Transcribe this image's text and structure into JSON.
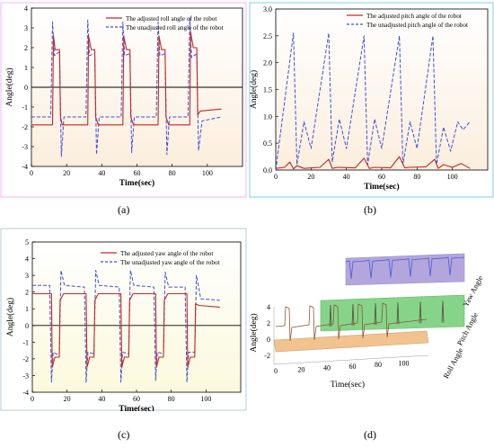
{
  "panel_labels": [
    "(a)",
    "(b)",
    "(c)",
    "(d)"
  ],
  "colors": {
    "adjusted": "#c0282a",
    "unadjusted": "#3f4fd8",
    "bg_a": "#fbeedd",
    "bg_b": "#fbeedd",
    "bg_c": "#fbf9dc",
    "roll_plane": "#f2c38f",
    "pitch_plane": "#85d48a",
    "yaw_plane": "#b3a6dd",
    "frame_a": "#f2b3ff",
    "frame_b": "#7ad1e6",
    "frame_c": "#b8c9d9"
  },
  "chart_data": [
    {
      "id": "a",
      "type": "line",
      "xlabel": "Time(sec)",
      "ylabel": "Angle(deg)",
      "xlim": [
        0,
        120
      ],
      "ylim": [
        -4,
        4
      ],
      "xticks": [
        0,
        20,
        40,
        60,
        80,
        100
      ],
      "yticks": [
        -4,
        -3,
        -2,
        -1,
        0,
        1,
        2,
        3,
        4
      ],
      "legend_position": "top-right",
      "series": [
        {
          "name": "The adjusted roll angle of the robot",
          "x": [
            0,
            12,
            12.5,
            13.5,
            16,
            16.5,
            17.5,
            32,
            32.5,
            34,
            36,
            36.5,
            38,
            52,
            52.5,
            54,
            56,
            56.5,
            58,
            72,
            72.5,
            74,
            76,
            76.5,
            78,
            90,
            90.5,
            92,
            94,
            94.5,
            96,
            108
          ],
          "y": [
            -1.9,
            -1.9,
            2.6,
            1.9,
            1.9,
            -1.5,
            -1.9,
            -1.9,
            2.6,
            1.9,
            1.9,
            -1.5,
            -1.9,
            -1.9,
            2.6,
            1.9,
            1.9,
            -1.5,
            -1.9,
            -1.9,
            2.6,
            1.9,
            1.9,
            -1.5,
            -1.9,
            -1.9,
            2.8,
            2.0,
            2.0,
            -1.4,
            -1.2,
            -1.1
          ]
        },
        {
          "name": "The unadjusted roll angle of the robot",
          "x": [
            0,
            11,
            12,
            13,
            16,
            17,
            18.5,
            31,
            32,
            33,
            36,
            37,
            38.5,
            51,
            52,
            53,
            56,
            57,
            58.5,
            71,
            72,
            73,
            76,
            77,
            78.5,
            89,
            90,
            91,
            94,
            95,
            97,
            108
          ],
          "y": [
            -1.5,
            -1.5,
            3.3,
            1.6,
            1.8,
            -3.5,
            -1.5,
            -1.5,
            3.4,
            1.6,
            1.7,
            -3.4,
            -1.5,
            -1.5,
            3.3,
            1.6,
            1.7,
            -3.3,
            -1.5,
            -1.5,
            3.3,
            1.6,
            1.7,
            -3.4,
            -1.5,
            -1.5,
            3.5,
            1.5,
            1.7,
            -3.2,
            -1.7,
            -1.5
          ]
        }
      ]
    },
    {
      "id": "b",
      "type": "line",
      "xlabel": "Time(sec)",
      "ylabel": "Angle(deg)",
      "xlim": [
        0,
        120
      ],
      "ylim": [
        0,
        3.0
      ],
      "xticks": [
        0,
        20,
        40,
        60,
        80,
        100
      ],
      "yticks": [
        0.0,
        0.5,
        1.0,
        1.5,
        2.0,
        2.5,
        3.0
      ],
      "legend_position": "top-right",
      "series": [
        {
          "name": "The adjusted pitch angle of the robot",
          "x": [
            0,
            5,
            8,
            10,
            12,
            16,
            25,
            30,
            32,
            35,
            45,
            50,
            53,
            56,
            65,
            70,
            73,
            76,
            85,
            90,
            92,
            95,
            100,
            105,
            110
          ],
          "y": [
            0.03,
            0.05,
            0.15,
            0.02,
            0.08,
            0.03,
            0.05,
            0.2,
            0.03,
            0.05,
            0.04,
            0.22,
            0.03,
            0.05,
            0.04,
            0.25,
            0.04,
            0.05,
            0.06,
            0.2,
            0.03,
            0.1,
            0.05,
            0.12,
            0.03
          ]
        },
        {
          "name": "The unadjusted pitch angle of the robot",
          "x": [
            0,
            10,
            12,
            16,
            20,
            30,
            32,
            36,
            40,
            50,
            52,
            56,
            60,
            70,
            72,
            76,
            80,
            89,
            91,
            95,
            99,
            103,
            106,
            110
          ],
          "y": [
            0.0,
            2.55,
            0.1,
            0.9,
            0.4,
            2.55,
            0.15,
            0.95,
            0.4,
            2.5,
            0.1,
            0.95,
            0.4,
            2.5,
            0.1,
            0.9,
            0.4,
            2.5,
            0.1,
            0.8,
            0.35,
            0.9,
            0.75,
            0.9
          ]
        }
      ]
    },
    {
      "id": "c",
      "type": "line",
      "xlabel": "Time(sec)",
      "ylabel": "Angle(deg)",
      "xlim": [
        0,
        120
      ],
      "ylim": [
        -4,
        5
      ],
      "xticks": [
        0,
        20,
        40,
        60,
        80,
        100
      ],
      "yticks": [
        -4,
        -3,
        -2,
        -1,
        0,
        1,
        2,
        3,
        4,
        5
      ],
      "legend_position": "top-right",
      "series": [
        {
          "name": "The adjusted yaw angle of the robot",
          "x": [
            0,
            11,
            11.5,
            13,
            15.5,
            16,
            18,
            31,
            31.5,
            33,
            35.5,
            36,
            38,
            51,
            51.5,
            53,
            55.5,
            56,
            58,
            71,
            71.5,
            73,
            75.5,
            76,
            78,
            89,
            89.5,
            91,
            93.5,
            94,
            96,
            108
          ],
          "y": [
            1.9,
            1.9,
            -2.5,
            -1.9,
            -1.9,
            1.5,
            1.9,
            1.9,
            -2.5,
            -1.9,
            -1.9,
            1.5,
            1.9,
            1.9,
            -2.5,
            -1.9,
            -1.9,
            1.5,
            1.9,
            1.9,
            -2.5,
            -1.9,
            -1.9,
            1.5,
            1.9,
            1.9,
            -2.5,
            -1.9,
            -1.9,
            1.3,
            1.2,
            1.1
          ]
        },
        {
          "name": "The unadjusted yaw angle of the robot",
          "x": [
            0,
            10,
            11,
            12,
            15.5,
            16.5,
            18.5,
            30,
            31,
            32,
            35.5,
            36.5,
            38.5,
            50,
            51,
            52,
            55.5,
            56.5,
            58.5,
            70,
            71,
            72,
            75.5,
            76.5,
            78.5,
            88,
            89,
            90,
            93.5,
            94.5,
            97,
            108
          ],
          "y": [
            2.4,
            2.4,
            -3.4,
            -1.6,
            -1.8,
            3.3,
            2.4,
            2.3,
            -3.4,
            -1.6,
            -1.7,
            3.3,
            2.4,
            2.3,
            -3.4,
            -1.6,
            -1.7,
            3.3,
            2.4,
            2.3,
            -3.3,
            -1.6,
            -1.7,
            3.2,
            2.3,
            2.3,
            -3.4,
            -1.6,
            -1.6,
            3.0,
            1.6,
            1.5
          ]
        }
      ]
    },
    {
      "id": "d",
      "type": "line",
      "xlabel": "Time(sec)",
      "ylabel": "Angle(deg)",
      "xticks": [
        0,
        20,
        40,
        60,
        80,
        100
      ],
      "yticks": [
        -2,
        0,
        2,
        4
      ],
      "plane_labels": [
        "Roll Angle",
        "Pitch Angle",
        "Yaw Angle"
      ]
    }
  ]
}
